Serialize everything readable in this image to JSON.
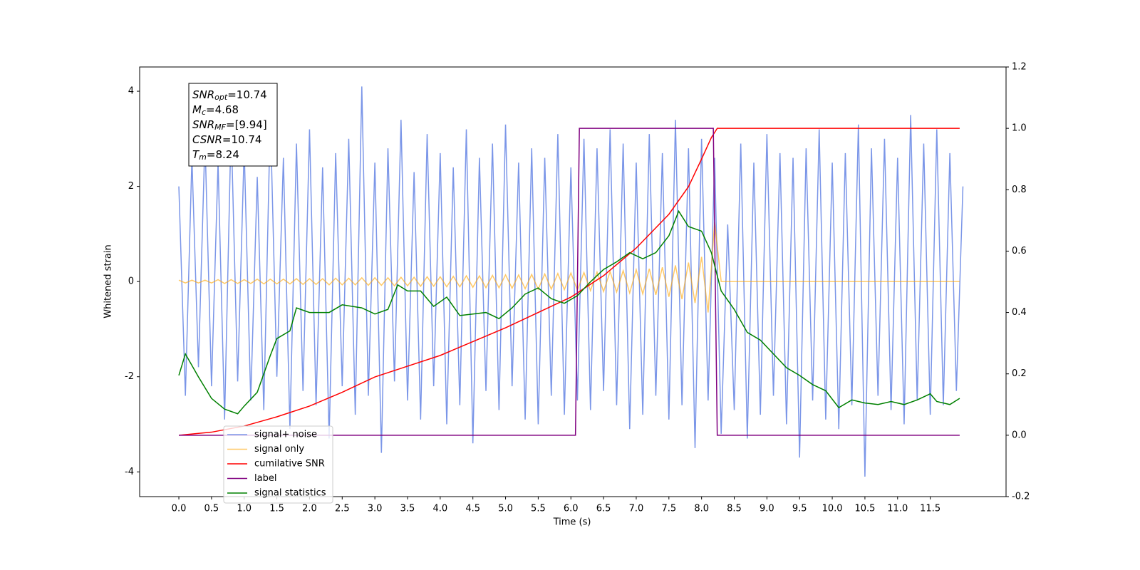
{
  "chart_data": {
    "type": "line",
    "xlabel": "Time (s)",
    "ylabel": "Whitened strain",
    "xlim": [
      -0.6,
      12.66
    ],
    "ylim": [
      -4.52,
      4.51
    ],
    "y2lim": [
      -0.2,
      1.2
    ],
    "xticks": [
      {
        "value": 0,
        "label": "0.0"
      },
      0.5,
      {
        "value": 1,
        "label": "1.0"
      },
      1.5,
      {
        "value": 2,
        "label": "2.0"
      },
      2.5,
      {
        "value": 3,
        "label": "3.0"
      },
      3.5,
      {
        "value": 4,
        "label": "4.0"
      },
      4.5,
      {
        "value": 5,
        "label": "5.0"
      },
      5.5,
      {
        "value": 6,
        "label": "6.0"
      },
      6.5,
      {
        "value": 7,
        "label": "7.0"
      },
      7.5,
      {
        "value": 8,
        "label": "8.0"
      },
      8.5,
      {
        "value": 9,
        "label": "9.0"
      },
      9.5,
      {
        "value": 10,
        "label": "10.0"
      },
      10.5,
      {
        "value": 11,
        "label": "11.0"
      },
      11.5
    ],
    "yticks": [
      -4,
      -2,
      0,
      2,
      4
    ],
    "y2ticks": [
      -0.2,
      {
        "value": 0,
        "label": "0.0"
      },
      0.2,
      0.4,
      0.6,
      0.8,
      {
        "value": 1,
        "label": "1.0"
      },
      1.2
    ],
    "legend": true,
    "annotations": [
      {
        "text": "SNR",
        "sub": "opt",
        "suffix": "=10.74"
      },
      {
        "text": "M",
        "sub": "c",
        "suffix": "=4.68"
      },
      {
        "text": "SNR",
        "sub": "MF",
        "suffix": "=[9.94]"
      },
      {
        "text": "CSNR",
        "suffix": "=10.74"
      },
      {
        "text": "T",
        "sub": "m",
        "suffix": "=8.24"
      }
    ],
    "series": [
      {
        "name": "signal+ noise",
        "color": "#7b96e8",
        "axis": "y",
        "x": [
          0,
          0.1,
          0.2,
          0.3,
          0.4,
          0.5,
          0.6,
          0.7,
          0.8,
          0.9,
          1,
          1.1,
          1.2,
          1.3,
          1.4,
          1.5,
          1.6,
          1.7,
          1.8,
          1.9,
          2,
          2.1,
          2.2,
          2.3,
          2.4,
          2.5,
          2.6,
          2.7,
          2.8,
          2.9,
          3,
          3.1,
          3.2,
          3.3,
          3.4,
          3.5,
          3.6,
          3.7,
          3.8,
          3.9,
          4,
          4.1,
          4.2,
          4.3,
          4.4,
          4.5,
          4.6,
          4.7,
          4.8,
          4.9,
          5,
          5.1,
          5.2,
          5.3,
          5.4,
          5.5,
          5.6,
          5.7,
          5.8,
          5.9,
          6,
          6.1,
          6.2,
          6.3,
          6.4,
          6.5,
          6.6,
          6.7,
          6.8,
          6.9,
          7,
          7.1,
          7.2,
          7.3,
          7.4,
          7.5,
          7.6,
          7.7,
          7.8,
          7.9,
          8,
          8.1,
          8.2,
          8.3,
          8.4,
          8.5,
          8.6,
          8.7,
          8.8,
          8.9,
          9,
          9.1,
          9.2,
          9.3,
          9.4,
          9.5,
          9.6,
          9.7,
          9.8,
          9.9,
          10,
          10.1,
          10.2,
          10.3,
          10.4,
          10.5,
          10.6,
          10.7,
          10.8,
          10.9,
          11,
          11.1,
          11.2,
          11.3,
          11.4,
          11.5,
          11.6,
          11.7,
          11.8,
          11.9,
          12
        ],
        "values": [
          2.0,
          -2.4,
          2.6,
          -1.8,
          3.0,
          -2.2,
          2.5,
          -2.9,
          3.3,
          -2.1,
          2.8,
          -2.5,
          2.2,
          -2.7,
          3.5,
          -2.0,
          2.6,
          -3.1,
          2.9,
          -2.3,
          3.2,
          -2.6,
          2.4,
          -3.3,
          2.7,
          -2.2,
          3.0,
          -2.8,
          4.1,
          -2.4,
          2.5,
          -3.6,
          2.8,
          -2.1,
          3.4,
          -2.5,
          2.3,
          -2.9,
          3.1,
          -2.2,
          2.7,
          -3.0,
          2.4,
          -2.6,
          3.2,
          -3.4,
          2.6,
          -2.3,
          2.9,
          -2.7,
          3.3,
          -2.2,
          2.5,
          -2.9,
          2.8,
          -3.0,
          2.6,
          -2.4,
          3.1,
          -2.8,
          2.4,
          -2.5,
          3.0,
          -2.7,
          2.8,
          -2.3,
          3.2,
          -2.6,
          2.9,
          -3.1,
          2.5,
          -2.8,
          3.1,
          -2.4,
          2.7,
          -2.9,
          3.4,
          -2.6,
          2.8,
          -3.5,
          3.0,
          -2.5,
          2.6,
          -3.2,
          1.2,
          -2.7,
          2.9,
          -3.3,
          2.5,
          -2.8,
          3.1,
          -2.4,
          2.7,
          -3.0,
          2.6,
          -3.7,
          2.8,
          -2.5,
          3.2,
          -2.9,
          2.5,
          -3.1,
          2.7,
          -2.6,
          3.3,
          -4.1,
          2.8,
          -2.4,
          3.0,
          -2.7,
          2.6,
          -3.0,
          3.5,
          -2.5,
          2.9,
          -2.8,
          3.2,
          -2.6,
          2.7,
          -2.3,
          2.0
        ]
      },
      {
        "name": "signal only",
        "color": "#ffa500",
        "axis": "y",
        "x": [
          0,
          0.1,
          0.2,
          0.3,
          0.4,
          0.5,
          0.6,
          0.7,
          0.8,
          0.9,
          1,
          1.1,
          1.2,
          1.3,
          1.4,
          1.5,
          1.6,
          1.7,
          1.8,
          1.9,
          2,
          2.1,
          2.2,
          2.3,
          2.4,
          2.5,
          2.6,
          2.7,
          2.8,
          2.9,
          3,
          3.1,
          3.2,
          3.3,
          3.4,
          3.5,
          3.6,
          3.7,
          3.8,
          3.9,
          4,
          4.1,
          4.2,
          4.3,
          4.4,
          4.5,
          4.6,
          4.7,
          4.8,
          4.9,
          5,
          5.1,
          5.2,
          5.3,
          5.4,
          5.5,
          5.6,
          5.7,
          5.8,
          5.9,
          6,
          6.1,
          6.2,
          6.3,
          6.4,
          6.5,
          6.6,
          6.7,
          6.8,
          6.9,
          7,
          7.1,
          7.2,
          7.3,
          7.4,
          7.5,
          7.6,
          7.7,
          7.8,
          7.9,
          8,
          8.1,
          8.2,
          8.3,
          11.95
        ],
        "values": [
          0.03,
          -0.03,
          0.03,
          -0.03,
          0.03,
          -0.03,
          0.04,
          -0.04,
          0.04,
          -0.04,
          0.04,
          -0.04,
          0.05,
          -0.05,
          0.05,
          -0.05,
          0.05,
          -0.05,
          0.06,
          -0.06,
          0.06,
          -0.06,
          0.06,
          -0.07,
          0.07,
          -0.07,
          0.07,
          -0.07,
          0.08,
          -0.08,
          0.08,
          -0.08,
          0.08,
          -0.09,
          0.09,
          -0.09,
          0.09,
          -0.1,
          0.1,
          -0.1,
          0.1,
          -0.11,
          0.11,
          -0.11,
          0.12,
          -0.12,
          0.12,
          -0.13,
          0.13,
          -0.13,
          0.14,
          -0.14,
          0.14,
          -0.15,
          0.15,
          -0.16,
          0.16,
          -0.16,
          0.17,
          -0.17,
          0.18,
          -0.18,
          0.19,
          -0.19,
          0.2,
          -0.21,
          0.21,
          -0.22,
          0.23,
          -0.24,
          0.25,
          -0.26,
          0.27,
          -0.28,
          0.3,
          -0.32,
          0.34,
          -0.37,
          0.4,
          -0.45,
          0.52,
          -0.65,
          1.25,
          0,
          0
        ]
      },
      {
        "name": "cumilative SNR",
        "color": "#ff0000",
        "axis": "y2",
        "x": [
          0,
          0.5,
          1,
          1.5,
          2,
          2.5,
          3,
          3.5,
          4,
          4.5,
          5,
          5.5,
          6,
          6.5,
          7,
          7.5,
          7.8,
          8,
          8.15,
          8.24,
          11.95
        ],
        "values": [
          0,
          0.01,
          0.03,
          0.06,
          0.095,
          0.14,
          0.19,
          0.225,
          0.26,
          0.305,
          0.35,
          0.4,
          0.45,
          0.52,
          0.61,
          0.72,
          0.81,
          0.9,
          0.97,
          1,
          1
        ]
      },
      {
        "name": "label",
        "color": "#800080",
        "axis": "y2",
        "x": [
          0,
          6.07,
          6.13,
          8.18,
          8.24,
          11.95
        ],
        "values": [
          0,
          0,
          1,
          1,
          0,
          0
        ]
      },
      {
        "name": "signal statistics",
        "color": "#008000",
        "axis": "y2",
        "x": [
          0,
          0.1,
          0.3,
          0.5,
          0.7,
          0.9,
          1,
          1.2,
          1.4,
          1.5,
          1.7,
          1.8,
          2,
          2.3,
          2.5,
          2.8,
          3,
          3.2,
          3.35,
          3.5,
          3.7,
          3.9,
          4.1,
          4.3,
          4.5,
          4.7,
          4.9,
          5.1,
          5.3,
          5.5,
          5.7,
          5.9,
          6.1,
          6.3,
          6.5,
          6.7,
          6.9,
          7.1,
          7.3,
          7.5,
          7.65,
          7.8,
          8,
          8.15,
          8.3,
          8.5,
          8.7,
          8.9,
          9.1,
          9.3,
          9.5,
          9.7,
          9.9,
          10.1,
          10.3,
          10.5,
          10.7,
          10.9,
          11.1,
          11.3,
          11.5,
          11.6,
          11.8,
          11.95
        ],
        "values": [
          0.195,
          0.265,
          0.19,
          0.12,
          0.085,
          0.07,
          0.095,
          0.14,
          0.26,
          0.315,
          0.34,
          0.415,
          0.4,
          0.4,
          0.425,
          0.415,
          0.395,
          0.41,
          0.49,
          0.47,
          0.47,
          0.42,
          0.45,
          0.39,
          0.395,
          0.4,
          0.38,
          0.415,
          0.46,
          0.48,
          0.445,
          0.43,
          0.455,
          0.5,
          0.54,
          0.565,
          0.595,
          0.575,
          0.595,
          0.65,
          0.73,
          0.68,
          0.665,
          0.595,
          0.47,
          0.41,
          0.335,
          0.31,
          0.265,
          0.22,
          0.195,
          0.165,
          0.145,
          0.09,
          0.115,
          0.105,
          0.1,
          0.11,
          0.1,
          0.115,
          0.135,
          0.11,
          0.1,
          0.12
        ]
      }
    ]
  }
}
